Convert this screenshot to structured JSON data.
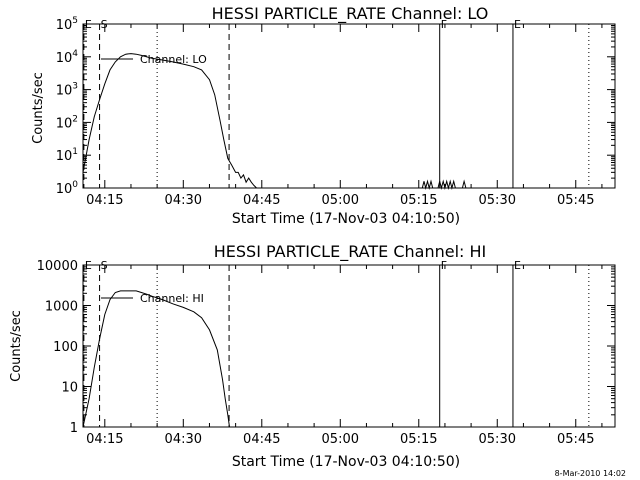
{
  "footer": {
    "timestamp": "8-Mar-2010 14:02"
  },
  "chart_data": [
    {
      "type": "line",
      "title": "HESSI PARTICLE_RATE Channel: LO",
      "xlabel": "Start Time (17-Nov-03 04:10:50)",
      "ylabel": "Counts/sec",
      "yscale": "log",
      "ylim": [
        1,
        100000
      ],
      "xlim": [
        "04:10:50",
        "05:52:30"
      ],
      "x_ticks": [
        "04:15",
        "04:30",
        "04:45",
        "05:00",
        "05:15",
        "05:30",
        "05:45"
      ],
      "y_ticks": [
        "10^0",
        "10^1",
        "10^2",
        "10^3",
        "10^4",
        "10^5"
      ],
      "legend": "Channel: LO",
      "markers": [
        {
          "label": "E",
          "time": "04:11:00",
          "style": "dashed"
        },
        {
          "label": "S",
          "time": "04:14:00",
          "style": "dashed"
        },
        {
          "label": "",
          "time": "04:25:00",
          "style": "dotted"
        },
        {
          "label": "",
          "time": "04:38:45",
          "style": "dashed"
        },
        {
          "label": "F",
          "time": "05:19:00",
          "style": "solid"
        },
        {
          "label": "E",
          "time": "05:33:00",
          "style": "solid"
        },
        {
          "label": "",
          "time": "05:47:30",
          "style": "dotted"
        }
      ],
      "series": [
        {
          "x": [
            "04:10:50",
            "04:12:00",
            "04:13:00",
            "04:14:00",
            "04:15:00",
            "04:16:00",
            "04:17:00",
            "04:18:00",
            "04:19:00",
            "04:20:00",
            "04:21:00",
            "04:22:00",
            "04:24:00",
            "04:26:00",
            "04:28:00",
            "04:30:00",
            "04:32:00",
            "04:33:30",
            "04:35:00",
            "04:36:00",
            "04:37:00",
            "04:37:45",
            "04:38:30",
            "04:39:15",
            "04:40:00",
            "04:40:30",
            "04:41:00",
            "04:41:30",
            "04:42:00",
            "04:42:30",
            "04:43:00",
            "04:43:30",
            "04:44:00",
            "04:44:30"
          ],
          "y": [
            3,
            30,
            150,
            500,
            1500,
            4000,
            7000,
            10000,
            12000,
            12500,
            12000,
            11000,
            9000,
            8000,
            7000,
            6000,
            5000,
            4000,
            2000,
            700,
            120,
            30,
            8,
            5,
            3,
            3,
            2,
            2.5,
            1.5,
            2,
            1.5,
            1.2,
            1,
            1
          ]
        },
        {
          "x": [
            "05:15:40",
            "05:16:00",
            "05:16:20",
            "05:16:40",
            "05:17:00",
            "05:17:20",
            "05:17:40"
          ],
          "y": [
            1,
            1.6,
            1,
            1.6,
            1,
            1.6,
            1
          ]
        },
        {
          "x": [
            "05:18:40",
            "05:19:00",
            "05:19:20",
            "05:19:40",
            "05:20:00",
            "05:20:20",
            "05:20:40",
            "05:21:00",
            "05:21:20",
            "05:21:40",
            "05:22:00"
          ],
          "y": [
            1,
            1.6,
            1,
            1.6,
            1,
            1.6,
            1,
            1.6,
            1,
            1.6,
            1
          ]
        },
        {
          "x": [
            "05:23:20",
            "05:23:40",
            "05:24:00"
          ],
          "y": [
            1,
            1.6,
            1
          ]
        }
      ]
    },
    {
      "type": "line",
      "title": "HESSI PARTICLE_RATE Channel: HI",
      "xlabel": "Start Time (17-Nov-03 04:10:50)",
      "ylabel": "Counts/sec",
      "yscale": "log",
      "ylim": [
        1,
        10000
      ],
      "xlim": [
        "04:10:50",
        "05:52:30"
      ],
      "x_ticks": [
        "04:15",
        "04:30",
        "04:45",
        "05:00",
        "05:15",
        "05:30",
        "05:45"
      ],
      "y_ticks": [
        "1",
        "10",
        "100",
        "1000",
        "10000"
      ],
      "legend": "Channel: HI",
      "markers": [
        {
          "label": "E",
          "time": "04:11:00",
          "style": "dashed"
        },
        {
          "label": "S",
          "time": "04:14:00",
          "style": "dashed"
        },
        {
          "label": "",
          "time": "04:25:00",
          "style": "dotted"
        },
        {
          "label": "",
          "time": "04:38:45",
          "style": "dashed"
        },
        {
          "label": "F",
          "time": "05:19:00",
          "style": "solid"
        },
        {
          "label": "E",
          "time": "05:33:00",
          "style": "solid"
        },
        {
          "label": "",
          "time": "05:47:30",
          "style": "dotted"
        }
      ],
      "series": [
        {
          "x": [
            "04:10:50",
            "04:12:00",
            "04:13:00",
            "04:14:00",
            "04:15:00",
            "04:16:00",
            "04:17:00",
            "04:18:00",
            "04:19:00",
            "04:20:00",
            "04:21:00",
            "04:22:00",
            "04:23:00",
            "04:24:00",
            "04:26:00",
            "04:28:00",
            "04:30:00",
            "04:32:00",
            "04:33:30",
            "04:35:00",
            "04:36:30",
            "04:37:30",
            "04:38:00",
            "04:38:30",
            "04:38:50"
          ],
          "y": [
            1,
            5,
            30,
            150,
            600,
            1400,
            2100,
            2300,
            2300,
            2300,
            2300,
            2100,
            1900,
            1700,
            1400,
            1100,
            900,
            700,
            500,
            250,
            80,
            15,
            5,
            2,
            1
          ]
        }
      ]
    }
  ]
}
